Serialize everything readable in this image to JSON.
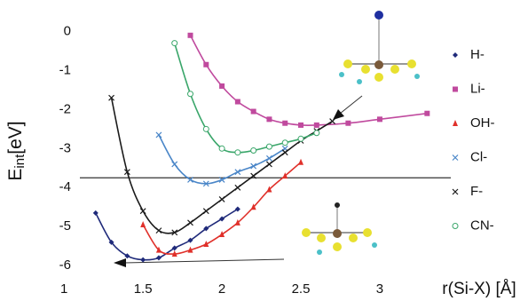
{
  "chart_data": {
    "type": "line",
    "y_label": [
      "E",
      "int",
      "[eV]"
    ],
    "x_label": "r(Si-X) [Å]",
    "xlim": [
      1.1,
      3.45
    ],
    "ylim": [
      -6.2,
      0.1
    ],
    "xticks": [
      1,
      1.5,
      2,
      2.5,
      3
    ],
    "yticks": [
      0,
      -1,
      -2,
      -3,
      -4,
      -5,
      -6
    ],
    "hline": -3.75,
    "series": [
      {
        "name": "H-",
        "color": "#1f2a7a",
        "marker": "diamond",
        "x": [
          1.2,
          1.3,
          1.4,
          1.5,
          1.6,
          1.7,
          1.8,
          1.9,
          2.0,
          2.1
        ],
        "values": [
          -4.65,
          -5.4,
          -5.75,
          -5.85,
          -5.8,
          -5.55,
          -5.35,
          -5.05,
          -4.8,
          -4.55
        ]
      },
      {
        "name": "Li-",
        "color": "#c04a9e",
        "marker": "square",
        "x": [
          1.8,
          1.9,
          2.0,
          2.1,
          2.2,
          2.3,
          2.4,
          2.5,
          2.6,
          2.8,
          3.0,
          3.3
        ],
        "values": [
          -0.1,
          -0.85,
          -1.4,
          -1.8,
          -2.05,
          -2.25,
          -2.35,
          -2.4,
          -2.4,
          -2.35,
          -2.25,
          -2.1
        ]
      },
      {
        "name": "OH-",
        "color": "#e0302a",
        "marker": "triangle",
        "x": [
          1.5,
          1.6,
          1.7,
          1.8,
          1.9,
          2.0,
          2.1,
          2.2,
          2.3,
          2.4,
          2.5
        ],
        "values": [
          -4.95,
          -5.6,
          -5.7,
          -5.6,
          -5.45,
          -5.2,
          -4.9,
          -4.5,
          -4.05,
          -3.7,
          -3.35
        ]
      },
      {
        "name": "Cl-",
        "color": "#4a86c8",
        "marker": "cross",
        "x": [
          1.6,
          1.7,
          1.8,
          1.9,
          2.0,
          2.1,
          2.2,
          2.3,
          2.4
        ],
        "values": [
          -2.65,
          -3.4,
          -3.8,
          -3.9,
          -3.8,
          -3.6,
          -3.45,
          -3.25,
          -3.0
        ]
      },
      {
        "name": "F-",
        "color": "#1a1a1a",
        "marker": "x",
        "x": [
          1.3,
          1.4,
          1.5,
          1.6,
          1.7,
          1.8,
          1.9,
          2.0,
          2.1,
          2.2,
          2.3,
          2.4,
          2.5,
          2.6,
          2.7
        ],
        "values": [
          -1.7,
          -3.6,
          -4.6,
          -5.1,
          -5.15,
          -4.9,
          -4.6,
          -4.3,
          -4.0,
          -3.7,
          -3.4,
          -3.1,
          -2.8,
          -2.55,
          -2.3
        ]
      },
      {
        "name": "CN-",
        "color": "#3aa66a",
        "marker": "circle",
        "x": [
          1.7,
          1.8,
          1.9,
          2.0,
          2.1,
          2.2,
          2.3,
          2.4,
          2.5,
          2.6
        ],
        "values": [
          -0.3,
          -1.6,
          -2.5,
          -3.0,
          -3.1,
          -3.05,
          -2.95,
          -2.85,
          -2.75,
          -2.6
        ]
      }
    ]
  }
}
